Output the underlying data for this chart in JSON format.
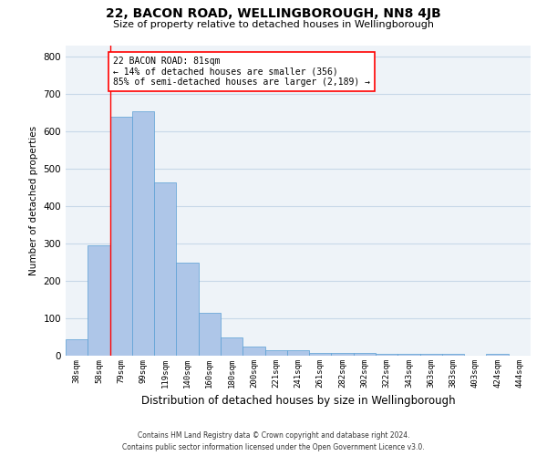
{
  "title": "22, BACON ROAD, WELLINGBOROUGH, NN8 4JB",
  "subtitle": "Size of property relative to detached houses in Wellingborough",
  "xlabel": "Distribution of detached houses by size in Wellingborough",
  "ylabel": "Number of detached properties",
  "categories": [
    "38sqm",
    "58sqm",
    "79sqm",
    "99sqm",
    "119sqm",
    "140sqm",
    "160sqm",
    "180sqm",
    "200sqm",
    "221sqm",
    "241sqm",
    "261sqm",
    "282sqm",
    "302sqm",
    "322sqm",
    "343sqm",
    "363sqm",
    "383sqm",
    "403sqm",
    "424sqm",
    "444sqm"
  ],
  "values": [
    45,
    295,
    640,
    655,
    465,
    250,
    115,
    50,
    25,
    15,
    15,
    8,
    8,
    8,
    5,
    5,
    5,
    5,
    0,
    5,
    0
  ],
  "bar_color": "#aec6e8",
  "bar_edge_color": "#5a9fd4",
  "ylim": [
    0,
    830
  ],
  "yticks": [
    0,
    100,
    200,
    300,
    400,
    500,
    600,
    700,
    800
  ],
  "grid_color": "#c8d8e8",
  "bg_color": "#eef3f8",
  "property_line_color": "red",
  "annotation_text": "22 BACON ROAD: 81sqm\n← 14% of detached houses are smaller (356)\n85% of semi-detached houses are larger (2,189) →",
  "annotation_box_color": "#ffffff",
  "annotation_box_edge": "red",
  "footnote": "Contains HM Land Registry data © Crown copyright and database right 2024.\nContains public sector information licensed under the Open Government Licence v3.0."
}
